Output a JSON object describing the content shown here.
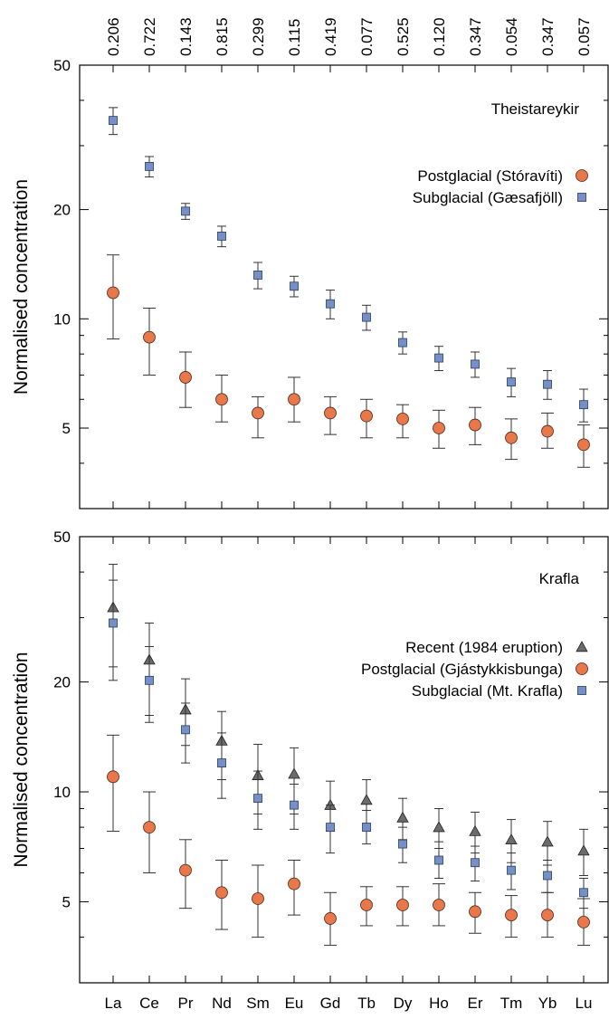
{
  "chart_data": [
    {
      "type": "scatter",
      "title": "Theistareykir",
      "ylabel": "Normalised concentration",
      "xlabel": "",
      "yscale": "log",
      "ylim": [
        3,
        50
      ],
      "yticks": [
        "50",
        "20",
        "10",
        "5"
      ],
      "top_labels": [
        "0.206",
        "0.722",
        "0.143",
        "0.815",
        "0.299",
        "0.115",
        "0.419",
        "0.077",
        "0.525",
        "0.120",
        "0.347",
        "0.054",
        "0.347",
        "0.057"
      ],
      "categories": [
        "La",
        "Ce",
        "Pr",
        "Nd",
        "Sm",
        "Eu",
        "Gd",
        "Tb",
        "Dy",
        "Ho",
        "Er",
        "Tm",
        "Yb",
        "Lu"
      ],
      "legend": "top-right",
      "series": [
        {
          "name": "Postglacial (Stóravíti)",
          "marker": "circle",
          "color": "#e8784a",
          "values": [
            11.8,
            8.9,
            6.9,
            6.0,
            5.5,
            6.0,
            5.5,
            5.4,
            5.3,
            5.0,
            5.1,
            4.7,
            4.9,
            4.5
          ],
          "err_low": [
            8.8,
            7.0,
            5.7,
            5.2,
            4.7,
            5.2,
            4.8,
            4.7,
            4.7,
            4.4,
            4.5,
            4.1,
            4.4,
            3.9
          ],
          "err_high": [
            15.0,
            10.7,
            8.1,
            7.0,
            6.1,
            6.9,
            6.1,
            6.0,
            5.8,
            5.6,
            5.7,
            5.3,
            5.5,
            5.1
          ]
        },
        {
          "name": "Subglacial (Gæsafjöll)",
          "marker": "square",
          "color": "#7391c8",
          "values": [
            35.2,
            26.3,
            19.8,
            16.9,
            13.2,
            12.3,
            11.0,
            10.1,
            8.6,
            7.8,
            7.5,
            6.7,
            6.6,
            5.8
          ],
          "err_low": [
            32.2,
            24.6,
            18.8,
            15.8,
            12.1,
            11.5,
            10.0,
            9.3,
            8.0,
            7.2,
            6.9,
            6.1,
            6.0,
            5.2
          ],
          "err_high": [
            38.2,
            28.0,
            20.8,
            18.0,
            14.3,
            13.1,
            12.0,
            10.9,
            9.2,
            8.4,
            8.1,
            7.3,
            7.2,
            6.4
          ]
        }
      ]
    },
    {
      "type": "scatter",
      "title": "Krafla",
      "ylabel": "Normalised concentration",
      "xlabel": "",
      "yscale": "log",
      "ylim": [
        3,
        50
      ],
      "yticks": [
        "50",
        "20",
        "10",
        "5"
      ],
      "categories": [
        "La",
        "Ce",
        "Pr",
        "Nd",
        "Sm",
        "Eu",
        "Gd",
        "Tb",
        "Dy",
        "Ho",
        "Er",
        "Tm",
        "Yb",
        "Lu"
      ],
      "legend": "top-right",
      "series": [
        {
          "name": "Recent (1984 eruption)",
          "marker": "triangle",
          "color": "#6b6b6b",
          "values": [
            32.0,
            23.0,
            16.8,
            13.8,
            11.1,
            11.2,
            9.2,
            9.5,
            8.5,
            8.0,
            7.8,
            7.4,
            7.3,
            6.9
          ],
          "err_low": [
            22.0,
            16.2,
            13.4,
            10.8,
            8.7,
            8.7,
            7.8,
            8.2,
            7.4,
            7.0,
            6.8,
            6.4,
            6.3,
            5.9
          ],
          "err_high": [
            42.0,
            29.0,
            20.4,
            16.6,
            13.5,
            13.2,
            10.7,
            10.8,
            9.6,
            9.0,
            8.8,
            8.4,
            8.3,
            7.9
          ]
        },
        {
          "name": "Postglacial (Gjástykkisbunga)",
          "marker": "circle",
          "color": "#e8784a",
          "values": [
            11.0,
            8.0,
            6.1,
            5.3,
            5.1,
            5.6,
            4.5,
            4.9,
            4.9,
            4.9,
            4.7,
            4.6,
            4.6,
            4.4
          ],
          "err_low": [
            7.8,
            6.0,
            4.8,
            4.2,
            4.0,
            4.6,
            3.8,
            4.3,
            4.3,
            4.3,
            4.1,
            4.0,
            4.0,
            3.8
          ],
          "err_high": [
            14.3,
            10.0,
            7.4,
            6.5,
            6.3,
            6.5,
            5.3,
            5.5,
            5.5,
            5.6,
            5.3,
            5.2,
            5.3,
            5.1
          ]
        },
        {
          "name": "Subglacial (Mt. Krafla)",
          "marker": "square",
          "color": "#7391c8",
          "values": [
            29.0,
            20.2,
            14.8,
            12.0,
            9.6,
            9.2,
            8.0,
            8.0,
            7.2,
            6.5,
            6.4,
            6.1,
            5.9,
            5.3
          ],
          "err_low": [
            20.2,
            15.5,
            12.0,
            9.6,
            7.9,
            7.9,
            6.8,
            7.2,
            6.4,
            5.8,
            5.7,
            5.4,
            5.3,
            4.8
          ],
          "err_high": [
            38.0,
            25.0,
            17.5,
            14.5,
            11.4,
            10.5,
            9.2,
            8.9,
            8.0,
            7.3,
            7.1,
            6.8,
            6.5,
            5.8
          ]
        }
      ]
    }
  ]
}
